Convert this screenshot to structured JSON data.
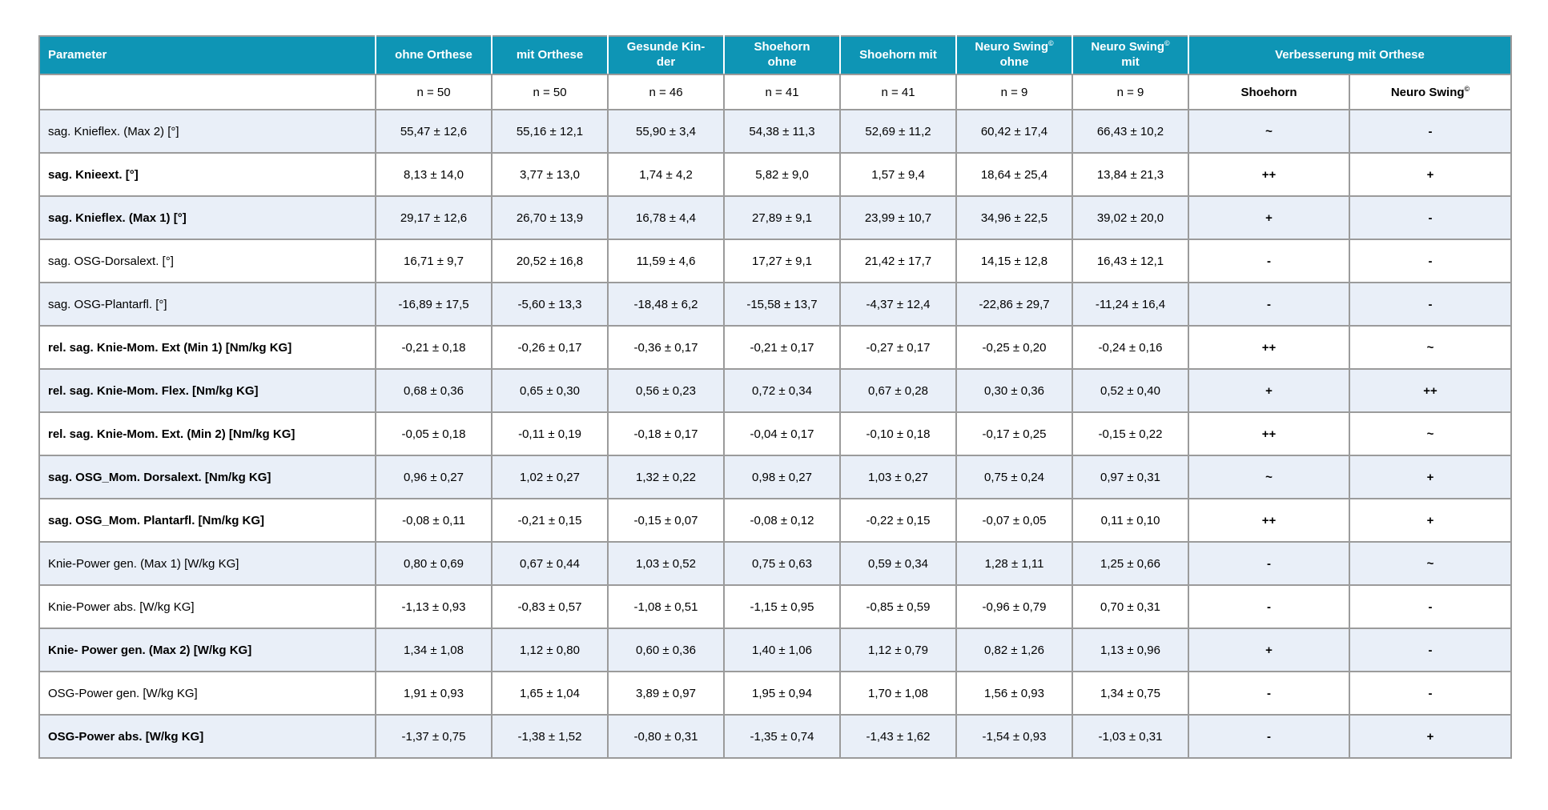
{
  "table": {
    "columns": [
      {
        "label_line1": "Parameter",
        "n": ""
      },
      {
        "label_line1": "ohne Orthese",
        "n": "n = 50"
      },
      {
        "label_line1": "mit Orthese",
        "n": "n = 50"
      },
      {
        "label_line1": "Gesunde Kin-",
        "label_line2": "der",
        "n": "n = 46"
      },
      {
        "label_line1": "Shoehorn",
        "label_line2": "ohne",
        "n": "n = 41"
      },
      {
        "label_line1": "Shoehorn mit",
        "n": "n = 41"
      },
      {
        "label_line1": "Neuro Swing",
        "sup": "©",
        "label_line2": "ohne",
        "n": "n = 9"
      },
      {
        "label_line1": "Neuro Swing",
        "sup": "©",
        "label_line2": "mit",
        "n": "n = 9"
      }
    ],
    "group_header": {
      "label": "Verbesserung mit Orthese"
    },
    "improvement_subcols": [
      {
        "label": "Shoehorn"
      },
      {
        "label": "Neuro Swing",
        "sup": "©"
      }
    ],
    "rows": [
      {
        "parameter": "sag. Knieflex. (Max 2) [°]",
        "bold": false,
        "values": [
          "55,47 ± 12,6",
          "55,16 ± 12,1",
          "55,90 ± 3,4",
          "54,38 ± 11,3",
          "52,69 ± 11,2",
          "60,42 ± 17,4",
          "66,43 ± 10,2"
        ],
        "improvement": {
          "shoehorn": "~",
          "neuro_swing": "-"
        }
      },
      {
        "parameter": "sag. Knieext. [°]",
        "bold": true,
        "values": [
          "8,13 ± 14,0",
          "3,77 ± 13,0",
          "1,74 ± 4,2",
          "5,82 ± 9,0",
          "1,57 ± 9,4",
          "18,64 ± 25,4",
          "13,84 ± 21,3"
        ],
        "improvement": {
          "shoehorn": "++",
          "neuro_swing": "+"
        }
      },
      {
        "parameter": "sag. Knieflex. (Max 1) [°]",
        "bold": true,
        "values": [
          "29,17 ± 12,6",
          "26,70 ± 13,9",
          "16,78 ± 4,4",
          "27,89 ± 9,1",
          "23,99 ± 10,7",
          "34,96 ± 22,5",
          "39,02 ± 20,0"
        ],
        "improvement": {
          "shoehorn": "+",
          "neuro_swing": "-"
        }
      },
      {
        "parameter": "sag. OSG-Dorsalext. [°]",
        "bold": false,
        "values": [
          "16,71 ± 9,7",
          "20,52 ± 16,8",
          "11,59 ± 4,6",
          "17,27 ± 9,1",
          "21,42 ± 17,7",
          "14,15 ± 12,8",
          "16,43 ± 12,1"
        ],
        "improvement": {
          "shoehorn": "-",
          "neuro_swing": "-"
        }
      },
      {
        "parameter": "sag. OSG-Plantarfl. [°]",
        "bold": false,
        "values": [
          "-16,89 ± 17,5",
          "-5,60 ± 13,3",
          "-18,48 ± 6,2",
          "-15,58 ± 13,7",
          "-4,37 ± 12,4",
          "-22,86 ± 29,7",
          "-11,24 ± 16,4"
        ],
        "improvement": {
          "shoehorn": "-",
          "neuro_swing": "-"
        }
      },
      {
        "parameter": "rel. sag. Knie-Mom. Ext (Min 1) [Nm/kg KG]",
        "bold": true,
        "values": [
          "-0,21 ± 0,18",
          "-0,26 ± 0,17",
          "-0,36 ± 0,17",
          "-0,21 ± 0,17",
          "-0,27 ± 0,17",
          "-0,25 ± 0,20",
          "-0,24 ± 0,16"
        ],
        "improvement": {
          "shoehorn": "++",
          "neuro_swing": "~"
        }
      },
      {
        "parameter": "rel. sag. Knie-Mom. Flex. [Nm/kg KG]",
        "bold": true,
        "values": [
          "0,68 ± 0,36",
          "0,65 ± 0,30",
          "0,56 ± 0,23",
          "0,72 ± 0,34",
          "0,67 ± 0,28",
          "0,30 ± 0,36",
          "0,52 ± 0,40"
        ],
        "improvement": {
          "shoehorn": "+",
          "neuro_swing": "++"
        }
      },
      {
        "parameter": "rel. sag. Knie-Mom. Ext. (Min 2) [Nm/kg KG]",
        "bold": true,
        "values": [
          "-0,05 ± 0,18",
          "-0,11 ± 0,19",
          "-0,18 ± 0,17",
          "-0,04 ± 0,17",
          "-0,10 ± 0,18",
          "-0,17 ± 0,25",
          "-0,15 ± 0,22"
        ],
        "improvement": {
          "shoehorn": "++",
          "neuro_swing": "~"
        }
      },
      {
        "parameter": "sag. OSG_Mom. Dorsalext. [Nm/kg KG]",
        "bold": true,
        "values": [
          "0,96 ± 0,27",
          "1,02 ± 0,27",
          "1,32 ± 0,22",
          "0,98 ± 0,27",
          "1,03 ± 0,27",
          "0,75 ± 0,24",
          "0,97 ± 0,31"
        ],
        "improvement": {
          "shoehorn": "~",
          "neuro_swing": "+"
        }
      },
      {
        "parameter": "sag. OSG_Mom. Plantarfl. [Nm/kg KG]",
        "bold": true,
        "values": [
          "-0,08 ± 0,11",
          "-0,21 ± 0,15",
          "-0,15 ± 0,07",
          "-0,08 ± 0,12",
          "-0,22 ± 0,15",
          "-0,07 ± 0,05",
          "0,11 ± 0,10"
        ],
        "improvement": {
          "shoehorn": "++",
          "neuro_swing": "+"
        }
      },
      {
        "parameter": "Knie-Power gen. (Max 1) [W/kg KG]",
        "bold": false,
        "values": [
          "0,80 ± 0,69",
          "0,67 ± 0,44",
          "1,03 ± 0,52",
          "0,75 ± 0,63",
          "0,59 ± 0,34",
          "1,28 ± 1,11",
          "1,25 ± 0,66"
        ],
        "improvement": {
          "shoehorn": "-",
          "neuro_swing": "~"
        }
      },
      {
        "parameter": "Knie-Power abs. [W/kg KG]",
        "bold": false,
        "values": [
          "-1,13 ± 0,93",
          "-0,83 ± 0,57",
          "-1,08 ± 0,51",
          "-1,15 ± 0,95",
          "-0,85 ± 0,59",
          "-0,96 ± 0,79",
          "0,70 ± 0,31"
        ],
        "improvement": {
          "shoehorn": "-",
          "neuro_swing": "-"
        }
      },
      {
        "parameter": "Knie- Power gen. (Max 2) [W/kg KG]",
        "bold": true,
        "values": [
          "1,34 ± 1,08",
          "1,12 ± 0,80",
          "0,60 ± 0,36",
          "1,40 ± 1,06",
          "1,12 ± 0,79",
          "0,82 ± 1,26",
          "1,13 ± 0,96"
        ],
        "improvement": {
          "shoehorn": "+",
          "neuro_swing": "-"
        }
      },
      {
        "parameter": "OSG-Power gen. [W/kg KG]",
        "bold": false,
        "values": [
          "1,91 ± 0,93",
          "1,65 ± 1,04",
          "3,89 ± 0,97",
          "1,95 ± 0,94",
          "1,70 ± 1,08",
          "1,56 ± 0,93",
          "1,34 ± 0,75"
        ],
        "improvement": {
          "shoehorn": "-",
          "neuro_swing": "-"
        }
      },
      {
        "parameter": "OSG-Power abs. [W/kg KG]",
        "bold": true,
        "values": [
          "-1,37 ± 0,75",
          "-1,38 ± 1,52",
          "-0,80 ± 0,31",
          "-1,35 ± 0,74",
          "-1,43 ± 1,62",
          "-1,54 ± 0,93",
          "-1,03 ± 0,31"
        ],
        "improvement": {
          "shoehorn": "-",
          "neuro_swing": "+"
        }
      }
    ]
  },
  "colors": {
    "header_teal": "#0e95b5",
    "row_alt_blue": "#e9eff8",
    "border_gray": "#9b9b9b"
  }
}
